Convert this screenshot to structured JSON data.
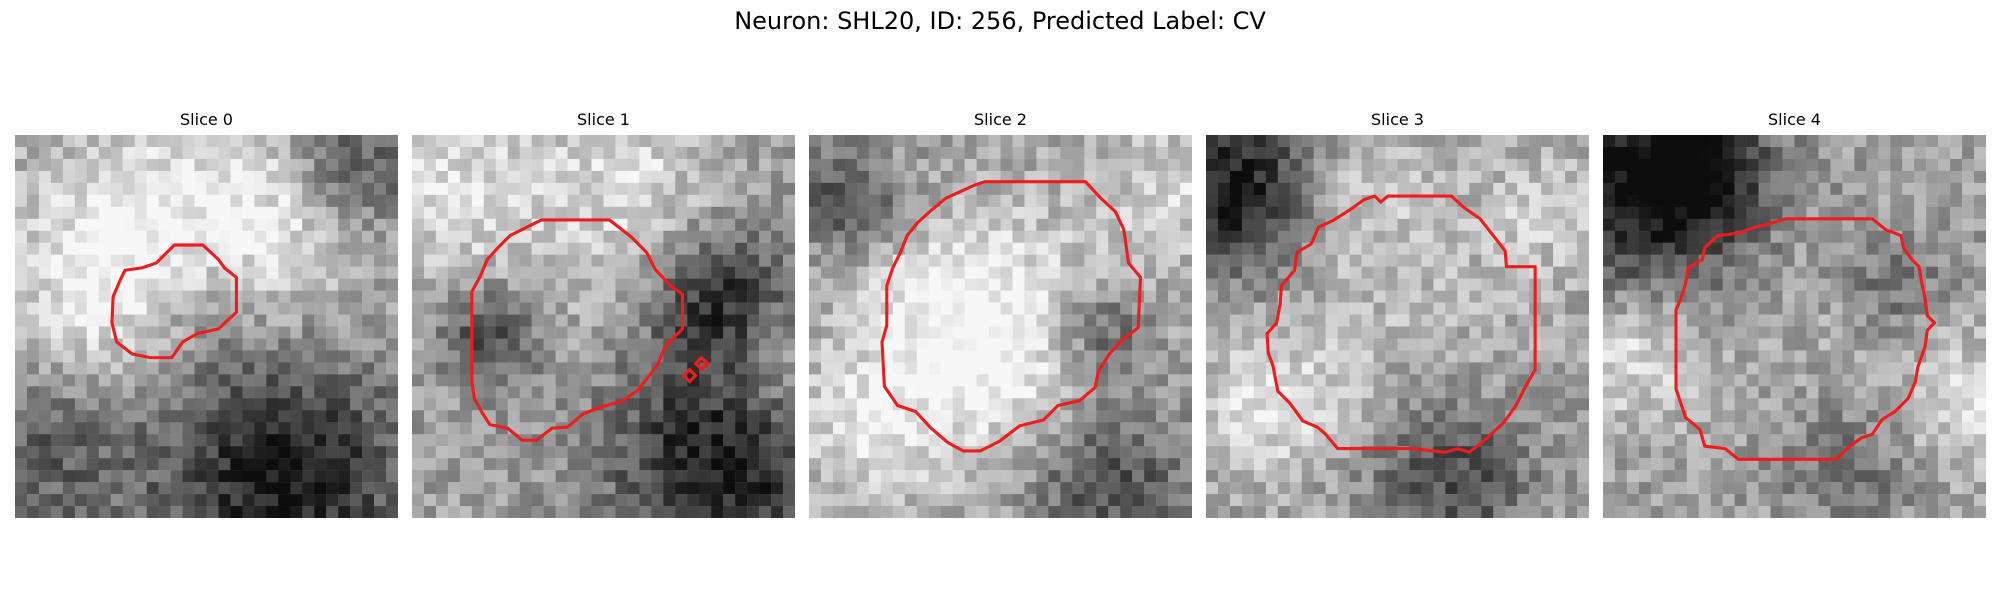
{
  "title": "Neuron: SHL20, ID: 256, Predicted Label: CV",
  "panels": [
    {
      "label": "Slice 0",
      "seed": 11,
      "contour_color": "#ee1c1c"
    },
    {
      "label": "Slice 1",
      "seed": 23,
      "contour_color": "#ee1c1c"
    },
    {
      "label": "Slice 2",
      "seed": 37,
      "contour_color": "#ee1c1c"
    },
    {
      "label": "Slice 3",
      "seed": 49,
      "contour_color": "#ee1c1c"
    },
    {
      "label": "Slice 4",
      "seed": 61,
      "contour_color": "#ee1c1c"
    }
  ],
  "grid_size": 32,
  "colormap": "gray"
}
